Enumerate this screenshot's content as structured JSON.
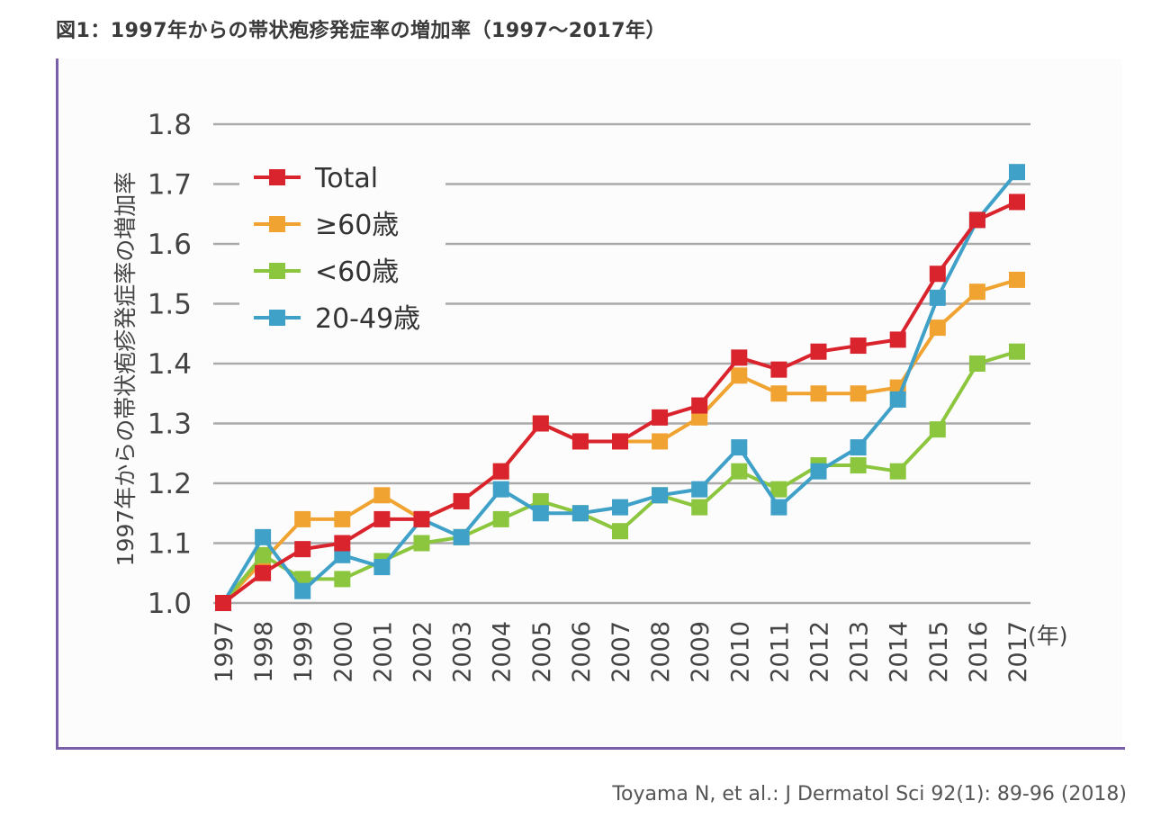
{
  "title": "図1：1997年からの帯状疱疹発症率の増加率（1997〜2017年）",
  "source": "Toyama N, et al.: J Dermatol Sci 92(1): 89-96 (2018)",
  "chart_data": {
    "type": "line",
    "title": "図1：1997年からの帯状疱疹発症率の増加率（1997〜2017年）",
    "xlabel": "(年)",
    "ylabel": "1997年からの帯状疱疹発症率の増加率",
    "ylim": [
      1.0,
      1.8
    ],
    "yticks": [
      "1.0",
      "1.1",
      "1.2",
      "1.3",
      "1.4",
      "1.5",
      "1.6",
      "1.7",
      "1.8"
    ],
    "grid": true,
    "legend_position": "top-left",
    "categories": [
      "1997",
      "1998",
      "1999",
      "2000",
      "2001",
      "2002",
      "2003",
      "2004",
      "2005",
      "2006",
      "2007",
      "2008",
      "2009",
      "2010",
      "2011",
      "2012",
      "2013",
      "2014",
      "2015",
      "2016",
      "2017"
    ],
    "series": [
      {
        "name": "≥60歳",
        "color": "#f0a330",
        "values": [
          1.0,
          1.07,
          1.14,
          1.14,
          1.18,
          1.14,
          1.17,
          1.22,
          1.3,
          1.27,
          1.27,
          1.27,
          1.31,
          1.38,
          1.35,
          1.35,
          1.35,
          1.36,
          1.46,
          1.52,
          1.54
        ]
      },
      {
        "name": "<60歳",
        "color": "#8cc63e",
        "values": [
          1.0,
          1.08,
          1.04,
          1.04,
          1.07,
          1.1,
          1.11,
          1.14,
          1.17,
          1.15,
          1.12,
          1.18,
          1.16,
          1.22,
          1.19,
          1.23,
          1.23,
          1.22,
          1.29,
          1.4,
          1.42
        ]
      },
      {
        "name": "20-49歳",
        "color": "#3fa0c8",
        "values": [
          1.0,
          1.11,
          1.02,
          1.08,
          1.06,
          1.14,
          1.11,
          1.19,
          1.15,
          1.15,
          1.16,
          1.18,
          1.19,
          1.26,
          1.16,
          1.22,
          1.26,
          1.34,
          1.51,
          1.64,
          1.72
        ]
      },
      {
        "name": "Total",
        "color": "#d9232d",
        "values": [
          1.0,
          1.05,
          1.09,
          1.1,
          1.14,
          1.14,
          1.17,
          1.22,
          1.3,
          1.27,
          1.27,
          1.31,
          1.33,
          1.41,
          1.39,
          1.42,
          1.43,
          1.44,
          1.55,
          1.64,
          1.67
        ]
      }
    ],
    "legend_order": [
      "Total",
      "≥60歳",
      "<60歳",
      "20-49歳"
    ]
  }
}
